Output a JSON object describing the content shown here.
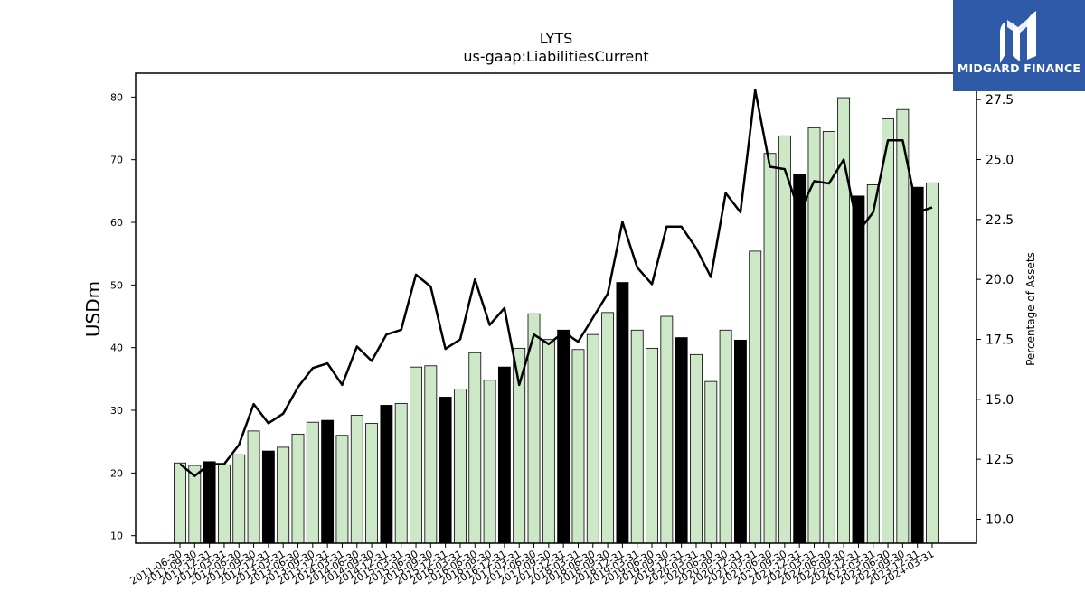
{
  "brand": {
    "name": "MIDGARD FINANCE",
    "icon": "midgard-logo-icon",
    "color": "#2f5aa8"
  },
  "chart_data": {
    "type": "bar",
    "title": "LYTS",
    "subtitle": "us-gaap:LiabilitiesCurrent",
    "ylabel": "USDm",
    "y2label": "Percentage of Assets",
    "ylim": [
      8.8,
      83.8
    ],
    "y2lim": [
      9.0,
      28.6
    ],
    "yticks": [
      10,
      20,
      30,
      40,
      50,
      60,
      70,
      80
    ],
    "y2ticks": [
      10.0,
      12.5,
      15.0,
      17.5,
      20.0,
      22.5,
      25.0,
      27.5
    ],
    "grid": false,
    "legend": "none",
    "colors": {
      "bar_default": "#cde8c6",
      "bar_highlight": "#000000",
      "bar_edge": "#000000",
      "line": "#000000"
    },
    "categories": [
      "2011-06-30",
      "2011-09-30",
      "2011-12-31",
      "2012-03-31",
      "2012-06-30",
      "2012-09-30",
      "2012-12-31",
      "2013-03-31",
      "2013-06-30",
      "2013-09-30",
      "2013-12-31",
      "2014-03-31",
      "2014-06-30",
      "2014-09-30",
      "2014-12-31",
      "2015-03-31",
      "2015-06-30",
      "2015-09-30",
      "2015-12-31",
      "2016-03-31",
      "2016-06-30",
      "2016-09-30",
      "2016-12-31",
      "2017-03-31",
      "2017-06-30",
      "2017-09-30",
      "2017-12-31",
      "2018-03-31",
      "2018-06-30",
      "2018-09-30",
      "2018-12-31",
      "2019-03-31",
      "2019-06-30",
      "2019-09-30",
      "2019-12-31",
      "2020-03-31",
      "2020-06-30",
      "2020-09-30",
      "2020-12-31",
      "2021-03-31",
      "2021-06-30",
      "2021-09-30",
      "2021-12-31",
      "2022-03-31",
      "2022-06-30",
      "2022-09-30",
      "2022-12-31",
      "2023-03-31",
      "2023-06-30",
      "2023-09-30",
      "2023-12-31",
      "2024-03-31"
    ],
    "series": [
      {
        "kind": "bar",
        "axis": "left",
        "values": [
          21.6,
          21.2,
          21.8,
          21.3,
          22.9,
          26.7,
          23.5,
          24.1,
          26.2,
          28.1,
          28.4,
          26.0,
          29.2,
          27.9,
          30.8,
          31.1,
          36.9,
          37.1,
          32.1,
          33.4,
          39.2,
          34.8,
          36.9,
          39.9,
          45.4,
          41.3,
          42.8,
          39.7,
          42.1,
          45.6,
          50.4,
          42.8,
          39.9,
          45.0,
          41.6,
          38.9,
          34.6,
          42.8,
          41.2,
          55.4,
          71.0,
          73.8,
          67.7,
          75.1,
          74.5,
          79.9,
          64.2,
          66.0,
          76.5,
          78.0,
          65.6,
          66.3
        ],
        "highlighted": [
          false,
          false,
          true,
          false,
          false,
          false,
          true,
          false,
          false,
          false,
          true,
          false,
          false,
          false,
          true,
          false,
          false,
          false,
          true,
          false,
          false,
          false,
          true,
          false,
          false,
          false,
          true,
          false,
          false,
          false,
          true,
          false,
          false,
          false,
          true,
          false,
          false,
          false,
          true,
          false,
          false,
          false,
          true,
          false,
          false,
          false,
          true,
          false,
          false,
          false,
          true,
          false
        ]
      },
      {
        "kind": "line",
        "axis": "right",
        "values": [
          12.3,
          11.8,
          12.3,
          12.3,
          13.1,
          14.8,
          14.0,
          14.4,
          15.5,
          16.3,
          16.5,
          15.6,
          17.2,
          16.6,
          17.7,
          17.9,
          20.2,
          19.7,
          17.1,
          17.5,
          20.0,
          18.1,
          18.8,
          15.6,
          17.7,
          17.3,
          17.8,
          17.4,
          18.4,
          19.4,
          22.4,
          20.5,
          19.8,
          22.2,
          22.2,
          21.3,
          20.1,
          23.6,
          22.8,
          27.9,
          24.7,
          24.6,
          22.8,
          24.1,
          24.0,
          25.0,
          22.0,
          22.8,
          25.8,
          25.8,
          22.8,
          23.0
        ]
      }
    ]
  }
}
